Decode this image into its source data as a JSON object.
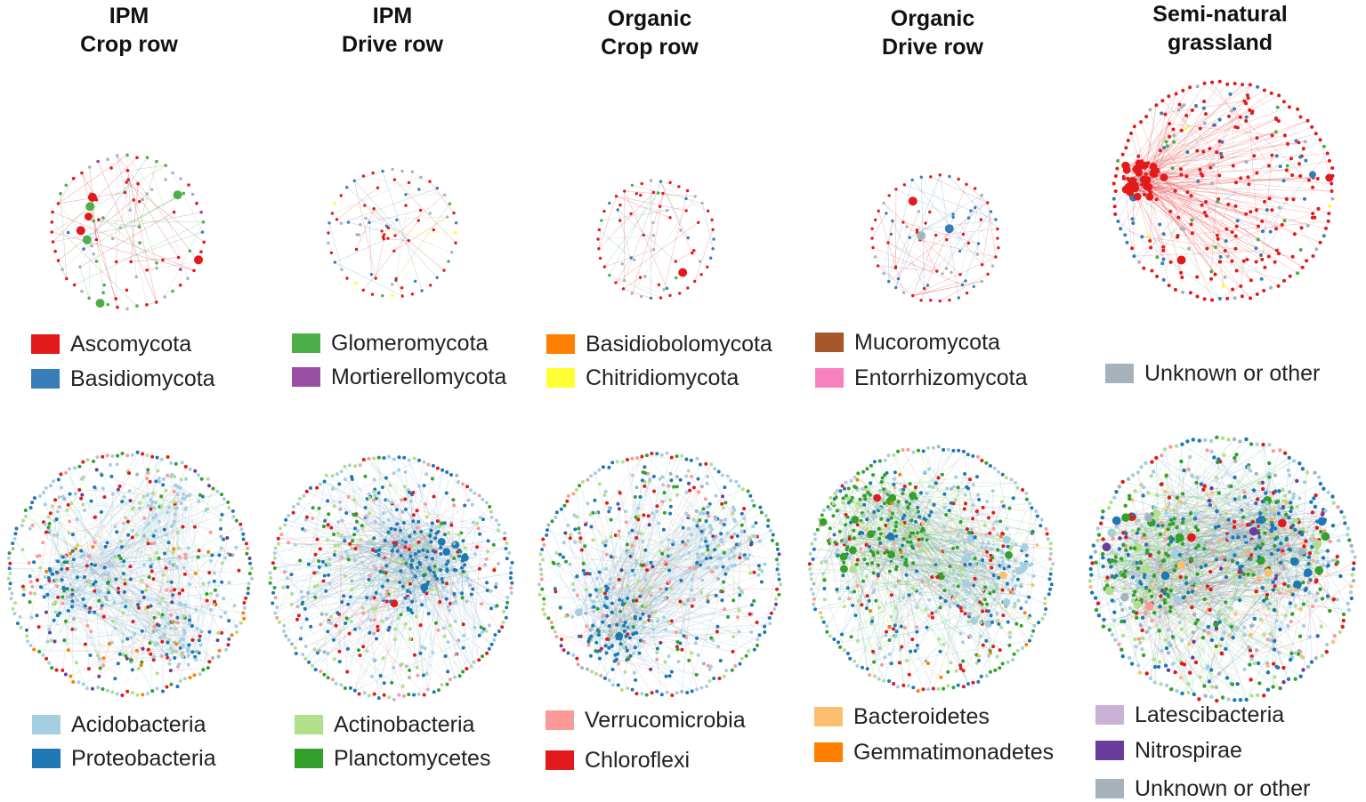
{
  "columns": [
    {
      "line1": "IPM",
      "line2": "Crop row"
    },
    {
      "line1": "IPM",
      "line2": "Drive row"
    },
    {
      "line1": "Organic",
      "line2": "Crop row"
    },
    {
      "line1": "Organic",
      "line2": "Drive row"
    },
    {
      "line1": "Semi-natural",
      "line2": "grassland"
    }
  ],
  "fungal_legend": [
    {
      "label": "Ascomycota",
      "color": "#e31a1c"
    },
    {
      "label": "Basidiomycota",
      "color": "#377eb8"
    },
    {
      "label": "Glomeromycota",
      "color": "#4daf4a"
    },
    {
      "label": "Mortierellomycota",
      "color": "#984ea3"
    },
    {
      "label": "Basidiobolomycota",
      "color": "#ff7f00"
    },
    {
      "label": "Chitridiomycota",
      "color": "#ffff33"
    },
    {
      "label": "Mucoromycota",
      "color": "#a65628"
    },
    {
      "label": "Entorrhizomycota",
      "color": "#f781bf"
    },
    {
      "label": "Unknown or other",
      "color": "#a6b3bd"
    }
  ],
  "bacterial_legend": [
    {
      "label": "Acidobacteria",
      "color": "#a6cee3"
    },
    {
      "label": "Proteobacteria",
      "color": "#1f78b4"
    },
    {
      "label": "Actinobacteria",
      "color": "#b2df8a"
    },
    {
      "label": "Planctomycetes",
      "color": "#33a02c"
    },
    {
      "label": "Verrucomicrobia",
      "color": "#fb9a99"
    },
    {
      "label": "Chloroflexi",
      "color": "#e31a1c"
    },
    {
      "label": "Bacteroidetes",
      "color": "#fdbf6f"
    },
    {
      "label": "Gemmatimonadetes",
      "color": "#ff7f00"
    },
    {
      "label": "Latescibacteria",
      "color": "#cab2d6"
    },
    {
      "label": "Nitrospirae",
      "color": "#6a3d9a"
    },
    {
      "label": "Unknown or other",
      "color": "#a6b3bd"
    }
  ],
  "fungal_networks": [
    {
      "mix": {
        "Ascomycota": 0.42,
        "Basidiomycota": 0.05,
        "Glomeromycota": 0.2,
        "Unknown or other": 0.28,
        "Mortierellomycota": 0.05
      }
    },
    {
      "mix": {
        "Ascomycota": 0.48,
        "Basidiomycota": 0.22,
        "Glomeromycota": 0.05,
        "Unknown or other": 0.2,
        "Chitridiomycota": 0.05
      }
    },
    {
      "mix": {
        "Ascomycota": 0.48,
        "Basidiomycota": 0.2,
        "Unknown or other": 0.27,
        "Glomeromycota": 0.05
      }
    },
    {
      "mix": {
        "Ascomycota": 0.45,
        "Basidiomycota": 0.35,
        "Unknown or other": 0.2
      }
    },
    {
      "mix": {
        "Ascomycota": 0.7,
        "Basidiomycota": 0.15,
        "Unknown or other": 0.08,
        "Glomeromycota": 0.04,
        "Chitridiomycota": 0.03
      }
    }
  ],
  "bacterial_networks": [
    {
      "mix": {
        "Acidobacteria": 0.25,
        "Proteobacteria": 0.2,
        "Actinobacteria": 0.18,
        "Planctomycetes": 0.1,
        "Chloroflexi": 0.12,
        "Verrucomicrobia": 0.06,
        "Gemmatimonadetes": 0.03,
        "Nitrospirae": 0.03,
        "Unknown or other": 0.03
      }
    },
    {
      "mix": {
        "Acidobacteria": 0.22,
        "Proteobacteria": 0.22,
        "Actinobacteria": 0.2,
        "Planctomycetes": 0.1,
        "Chloroflexi": 0.12,
        "Verrucomicrobia": 0.08,
        "Latescibacteria": 0.03,
        "Unknown or other": 0.03
      }
    },
    {
      "mix": {
        "Acidobacteria": 0.22,
        "Proteobacteria": 0.22,
        "Actinobacteria": 0.18,
        "Planctomycetes": 0.12,
        "Chloroflexi": 0.12,
        "Verrucomicrobia": 0.08,
        "Nitrospirae": 0.03,
        "Unknown or other": 0.03
      }
    },
    {
      "mix": {
        "Acidobacteria": 0.22,
        "Proteobacteria": 0.22,
        "Actinobacteria": 0.18,
        "Planctomycetes": 0.14,
        "Chloroflexi": 0.12,
        "Verrucomicrobia": 0.05,
        "Gemmatimonadetes": 0.03,
        "Bacteroidetes": 0.02,
        "Unknown or other": 0.02
      }
    },
    {
      "mix": {
        "Acidobacteria": 0.2,
        "Proteobacteria": 0.22,
        "Actinobacteria": 0.15,
        "Planctomycetes": 0.15,
        "Chloroflexi": 0.1,
        "Verrucomicrobia": 0.06,
        "Bacteroidetes": 0.04,
        "Unknown or other": 0.05,
        "Nitrospirae": 0.03
      }
    }
  ]
}
